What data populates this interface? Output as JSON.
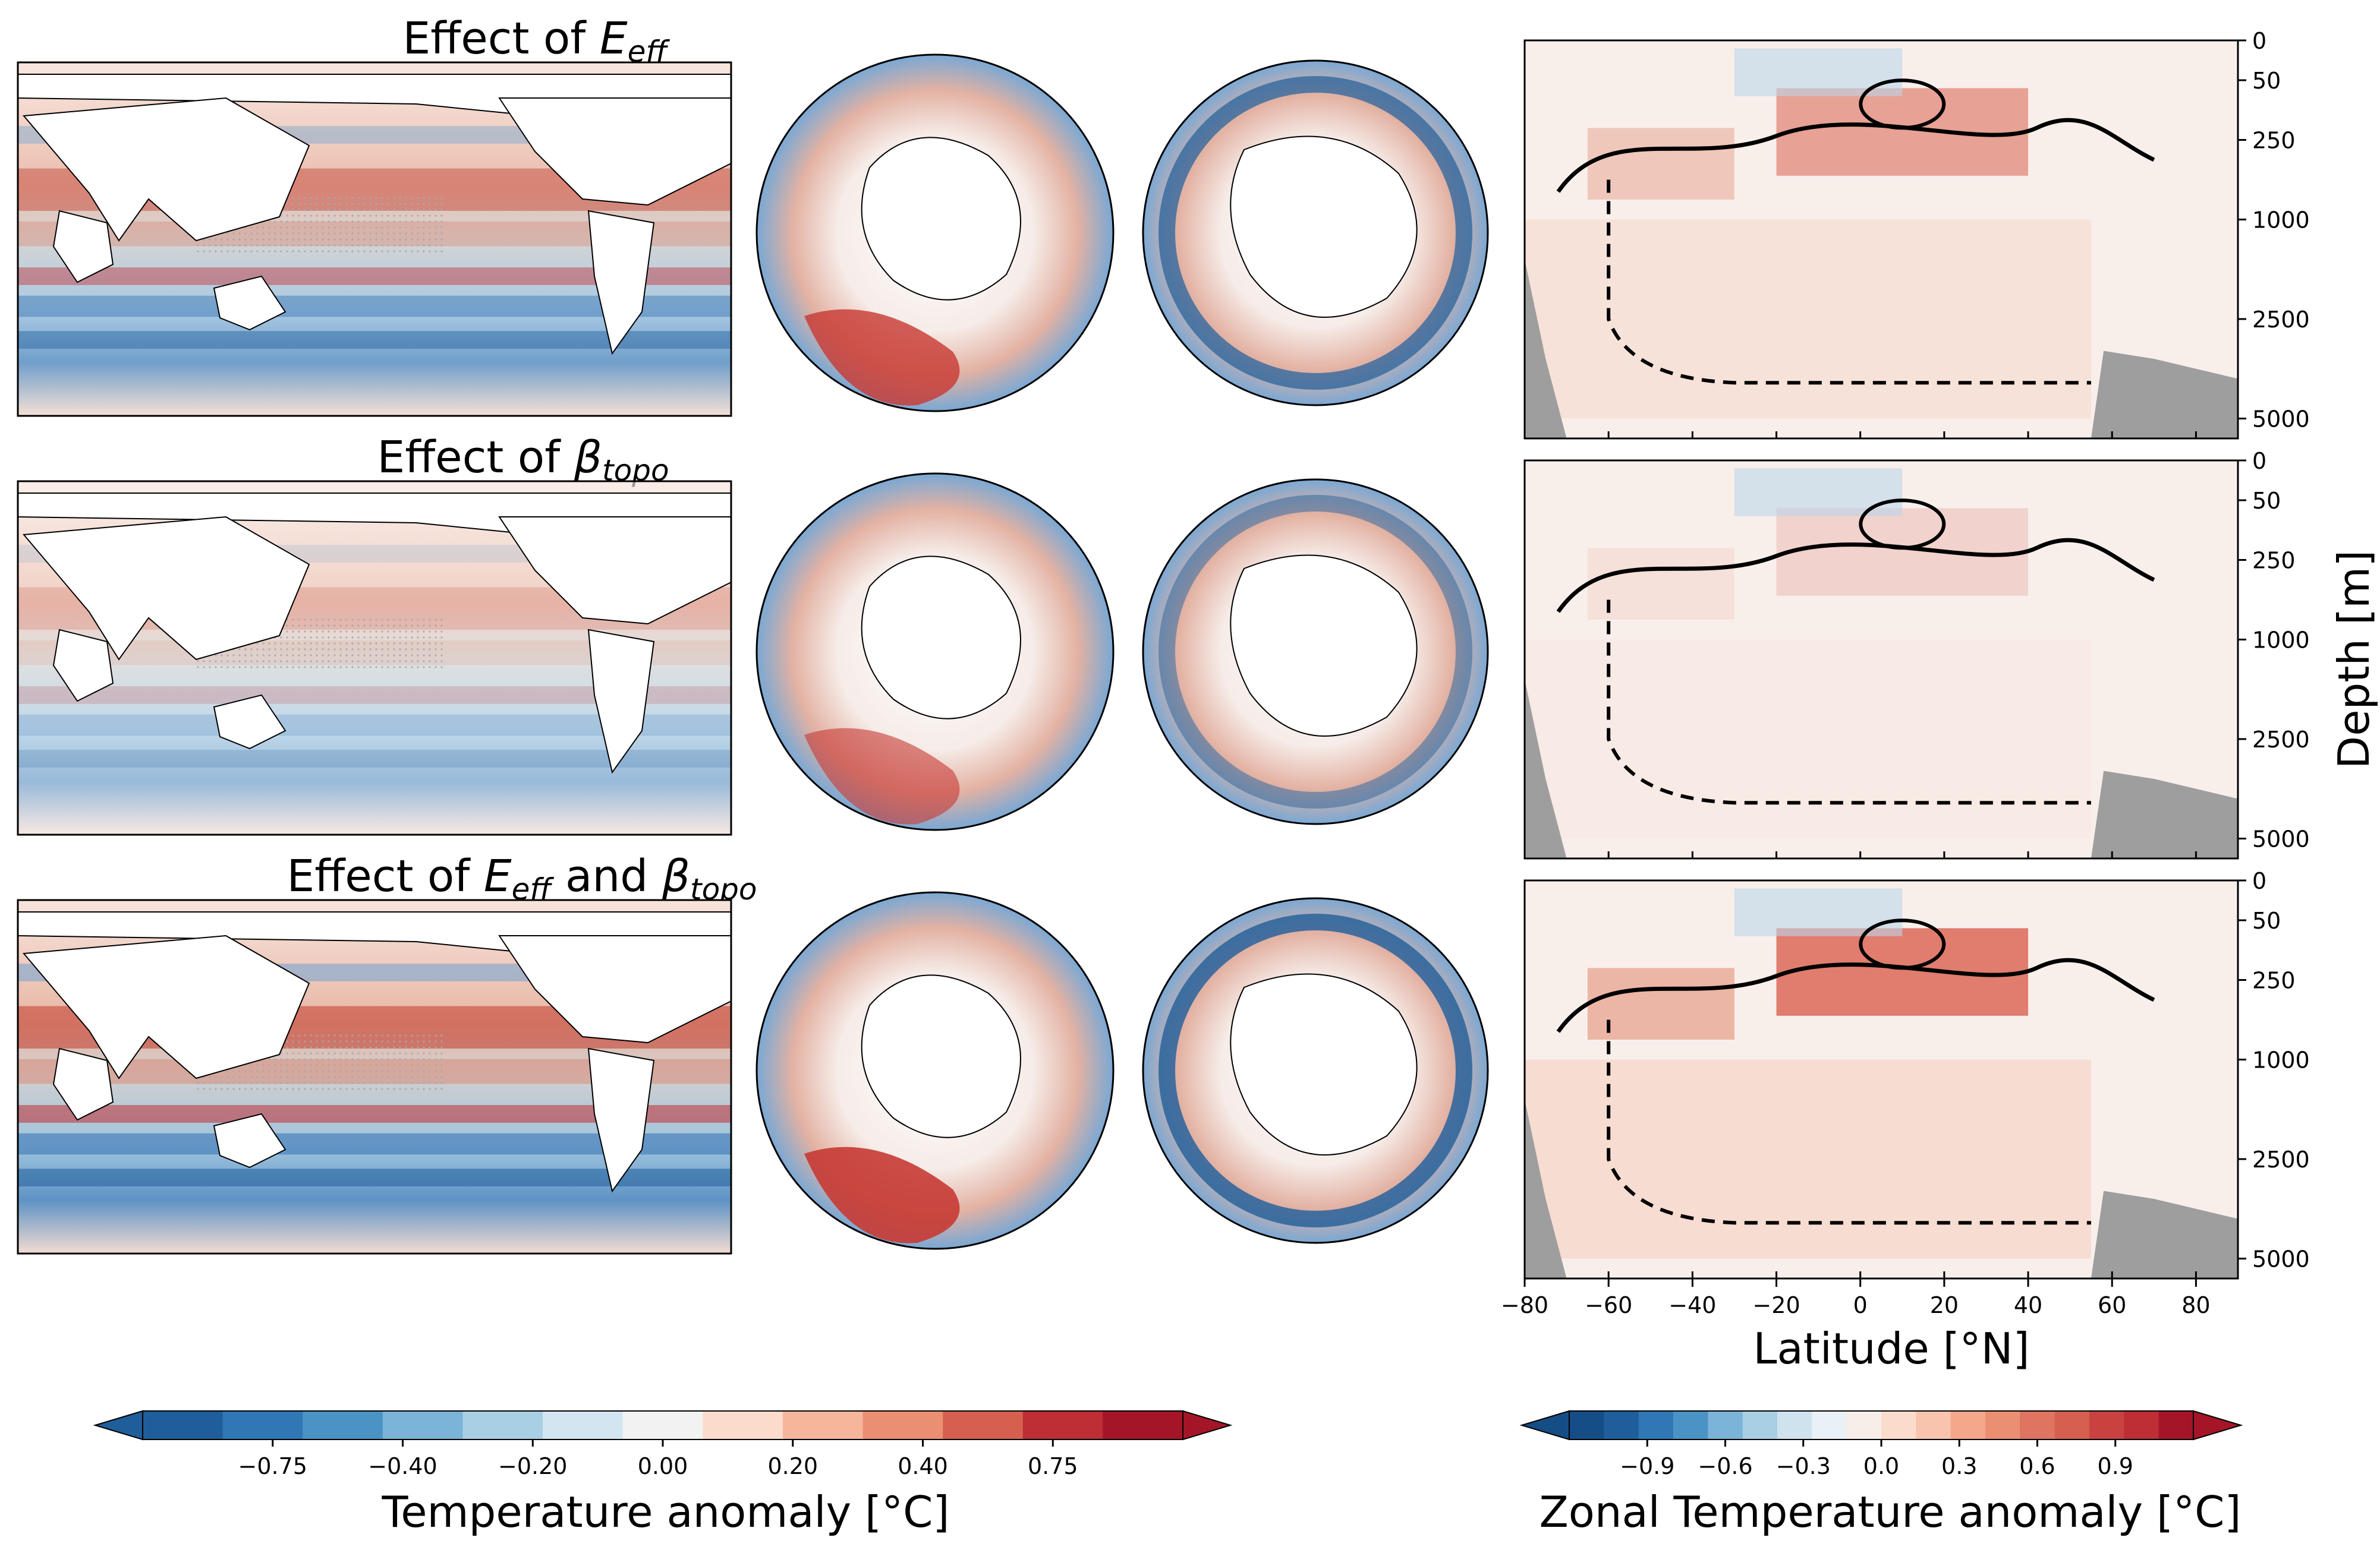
{
  "chart_data": {
    "type": "heatmap",
    "rows": [
      {
        "title_prefix": "Effect of ",
        "sym1": "E",
        "sub1": "eff",
        "join": "",
        "sym2": "",
        "sub2": ""
      },
      {
        "title_prefix": "Effect of ",
        "sym1": "β",
        "sub1": "topo",
        "join": "",
        "sym2": "",
        "sub2": ""
      },
      {
        "title_prefix": "Effect of ",
        "sym1": "E",
        "sub1": "eff",
        "join": " and ",
        "sym2": "β",
        "sub2": "topo"
      }
    ],
    "map_panels_per_row": [
      "global map",
      "north pole",
      "south pole"
    ],
    "zonal_section": {
      "x_ticks": [
        -80,
        -60,
        -40,
        -20,
        0,
        20,
        40,
        60,
        80
      ],
      "xlim": [
        -80,
        90
      ],
      "y_ticks": [
        "0",
        "50",
        "250",
        "1000",
        "2500",
        "5000"
      ],
      "xlabel": "Latitude [°N]",
      "ylabel": "Depth [m]",
      "row_intensity": [
        0.55,
        0.2,
        0.8
      ]
    },
    "colorbar_left": {
      "label": "Temperature anomaly [°C]",
      "ticks": [
        "−0.75",
        "−0.40",
        "−0.20",
        "0.00",
        "0.20",
        "0.40",
        "0.75"
      ],
      "colors": [
        "#1f5e9a",
        "#2f78b5",
        "#4b93c5",
        "#7bb4d8",
        "#a9cfe5",
        "#d3e5f0",
        "#f2f2f2",
        "#fbdbcb",
        "#f6b69b",
        "#ea8f72",
        "#d6604f",
        "#bd2e35",
        "#a51528"
      ]
    },
    "colorbar_right": {
      "label": "Zonal Temperature anomaly [°C]",
      "ticks": [
        "−0.9",
        "−0.6",
        "−0.3",
        "0.0",
        "0.3",
        "0.6",
        "0.9"
      ],
      "colors": [
        "#154d87",
        "#1f5e9a",
        "#2f78b5",
        "#4b93c5",
        "#7bb4d8",
        "#a9cfe5",
        "#cfe3ef",
        "#e9f1f6",
        "#f7eeea",
        "#fbdbcb",
        "#f8c4ad",
        "#f4a78a",
        "#ea8f72",
        "#df7460",
        "#d6604f",
        "#c8423f",
        "#bd2e35",
        "#a51528"
      ]
    }
  }
}
